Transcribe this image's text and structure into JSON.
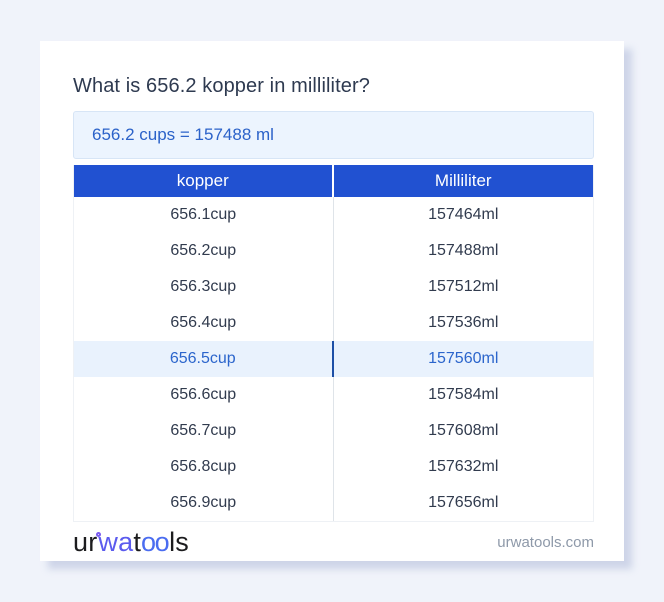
{
  "title": "What is 656.2 kopper in milliliter?",
  "result_box": {
    "text": "656.2 cups = 157488 ml"
  },
  "table": {
    "headers": [
      "kopper",
      "Milliliter"
    ],
    "rows": [
      {
        "kopper": "656.1cup",
        "milliliter": "157464ml"
      },
      {
        "kopper": "656.2cup",
        "milliliter": "157488ml"
      },
      {
        "kopper": "656.3cup",
        "milliliter": "157512ml"
      },
      {
        "kopper": "656.4cup",
        "milliliter": "157536ml"
      },
      {
        "kopper": "656.5cup",
        "milliliter": "157560ml"
      },
      {
        "kopper": "656.6cup",
        "milliliter": "157584ml"
      },
      {
        "kopper": "656.7cup",
        "milliliter": "157608ml"
      },
      {
        "kopper": "656.8cup",
        "milliliter": "157632ml"
      },
      {
        "kopper": "656.9cup",
        "milliliter": "157656ml"
      }
    ],
    "highlighted_row_index": 4
  },
  "footer": {
    "logo_parts": [
      {
        "text": "ur"
      },
      {
        "text": "wa"
      },
      {
        "text": "t"
      },
      {
        "text": "oo"
      },
      {
        "text": "ls"
      }
    ],
    "site": "urwatools.com"
  },
  "colors": {
    "page_background": "#f0f3fa",
    "card_background": "#ffffff",
    "table_header_blue": "#2151d1",
    "highlight_row_background": "#e9f2fd",
    "highlight_row_text": "#2b65cc",
    "highlight_divider": "#1d4fa6",
    "result_box_background": "#ecf4fe",
    "result_text": "#2b62c9",
    "title_text": "#2e3a50",
    "row_text": "#313b4e",
    "logo_purple": "#5b5bee",
    "logo_blue": "#4a6cf0",
    "footer_url_text": "#8e99a9"
  }
}
